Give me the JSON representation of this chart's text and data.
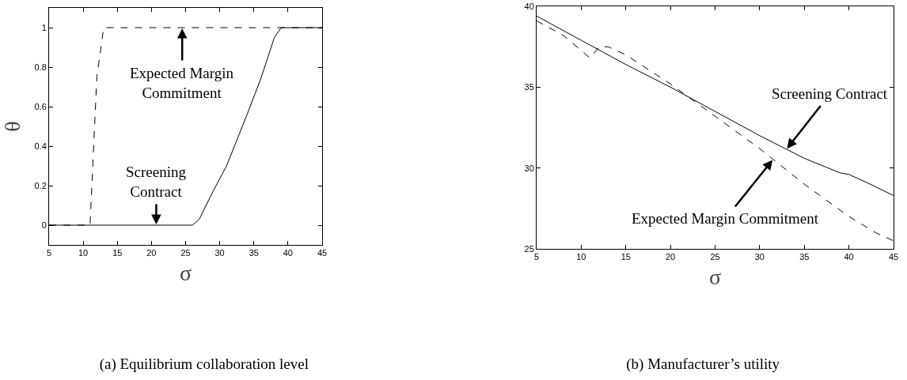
{
  "chart_data": [
    {
      "type": "line",
      "title": "(a) Equilibrium collaboration level",
      "xlabel": "σ",
      "ylabel": "θ",
      "series": [
        {
          "color": "#000000",
          "line_style": "dashed",
          "x": [
            5,
            11,
            12,
            13,
            20,
            30,
            40,
            45
          ],
          "values": [
            0,
            0,
            0.75,
            1,
            1,
            1,
            1,
            1
          ]
        },
        {
          "color": "#000000",
          "line_style": "solid",
          "x": [
            5,
            10,
            20,
            26,
            27,
            29,
            31,
            34,
            36,
            38,
            39,
            45
          ],
          "values": [
            0,
            0,
            0,
            0,
            0.03,
            0.17,
            0.3,
            0.56,
            0.74,
            0.95,
            1,
            1
          ]
        }
      ],
      "annotations": [
        {
          "text": "Expected Margin Commitment",
          "x": 24.5,
          "y": 1
        },
        {
          "text": "Screening Contract",
          "x": 20.7,
          "y": 0
        }
      ],
      "xlim": [
        5,
        45
      ],
      "xticks": [
        5,
        10,
        15,
        20,
        25,
        30,
        35,
        40,
        45
      ],
      "ylim": [
        -0.1,
        1.1
      ],
      "yticks": [
        0,
        0.2,
        0.4,
        0.6,
        0.8,
        1
      ],
      "grid": false
    },
    {
      "type": "line",
      "title": "(b) Manufacturer’s utility",
      "xlabel": "σ",
      "series": [
        {
          "color": "#000000",
          "line_style": "solid",
          "x": [
            5,
            10,
            15,
            20,
            25,
            30,
            35,
            39,
            40,
            42,
            45
          ],
          "values": [
            39.4,
            37.9,
            36.4,
            35,
            33.5,
            32,
            30.6,
            29.7,
            29.6,
            29.1,
            28.3
          ]
        },
        {
          "color": "#000000",
          "line_style": "dashed",
          "x": [
            5,
            8,
            11,
            12,
            13,
            15,
            20,
            25,
            30,
            35,
            40,
            43,
            45
          ],
          "values": [
            39.1,
            38.2,
            36.8,
            37.5,
            37.5,
            37,
            35.2,
            33.2,
            31.2,
            29,
            27,
            26,
            25.5
          ]
        }
      ],
      "annotations": [
        {
          "text": "Screening Contract",
          "x": 33,
          "y": 31.16
        },
        {
          "text": "Expected Margin Commitment",
          "x": 31.5,
          "y": 30.54
        }
      ],
      "xlim": [
        5,
        45
      ],
      "xticks": [
        5,
        10,
        15,
        20,
        25,
        30,
        35,
        40,
        45
      ],
      "ylim": [
        25,
        40
      ],
      "yticks": [
        25,
        30,
        35,
        40
      ],
      "grid": false
    }
  ]
}
